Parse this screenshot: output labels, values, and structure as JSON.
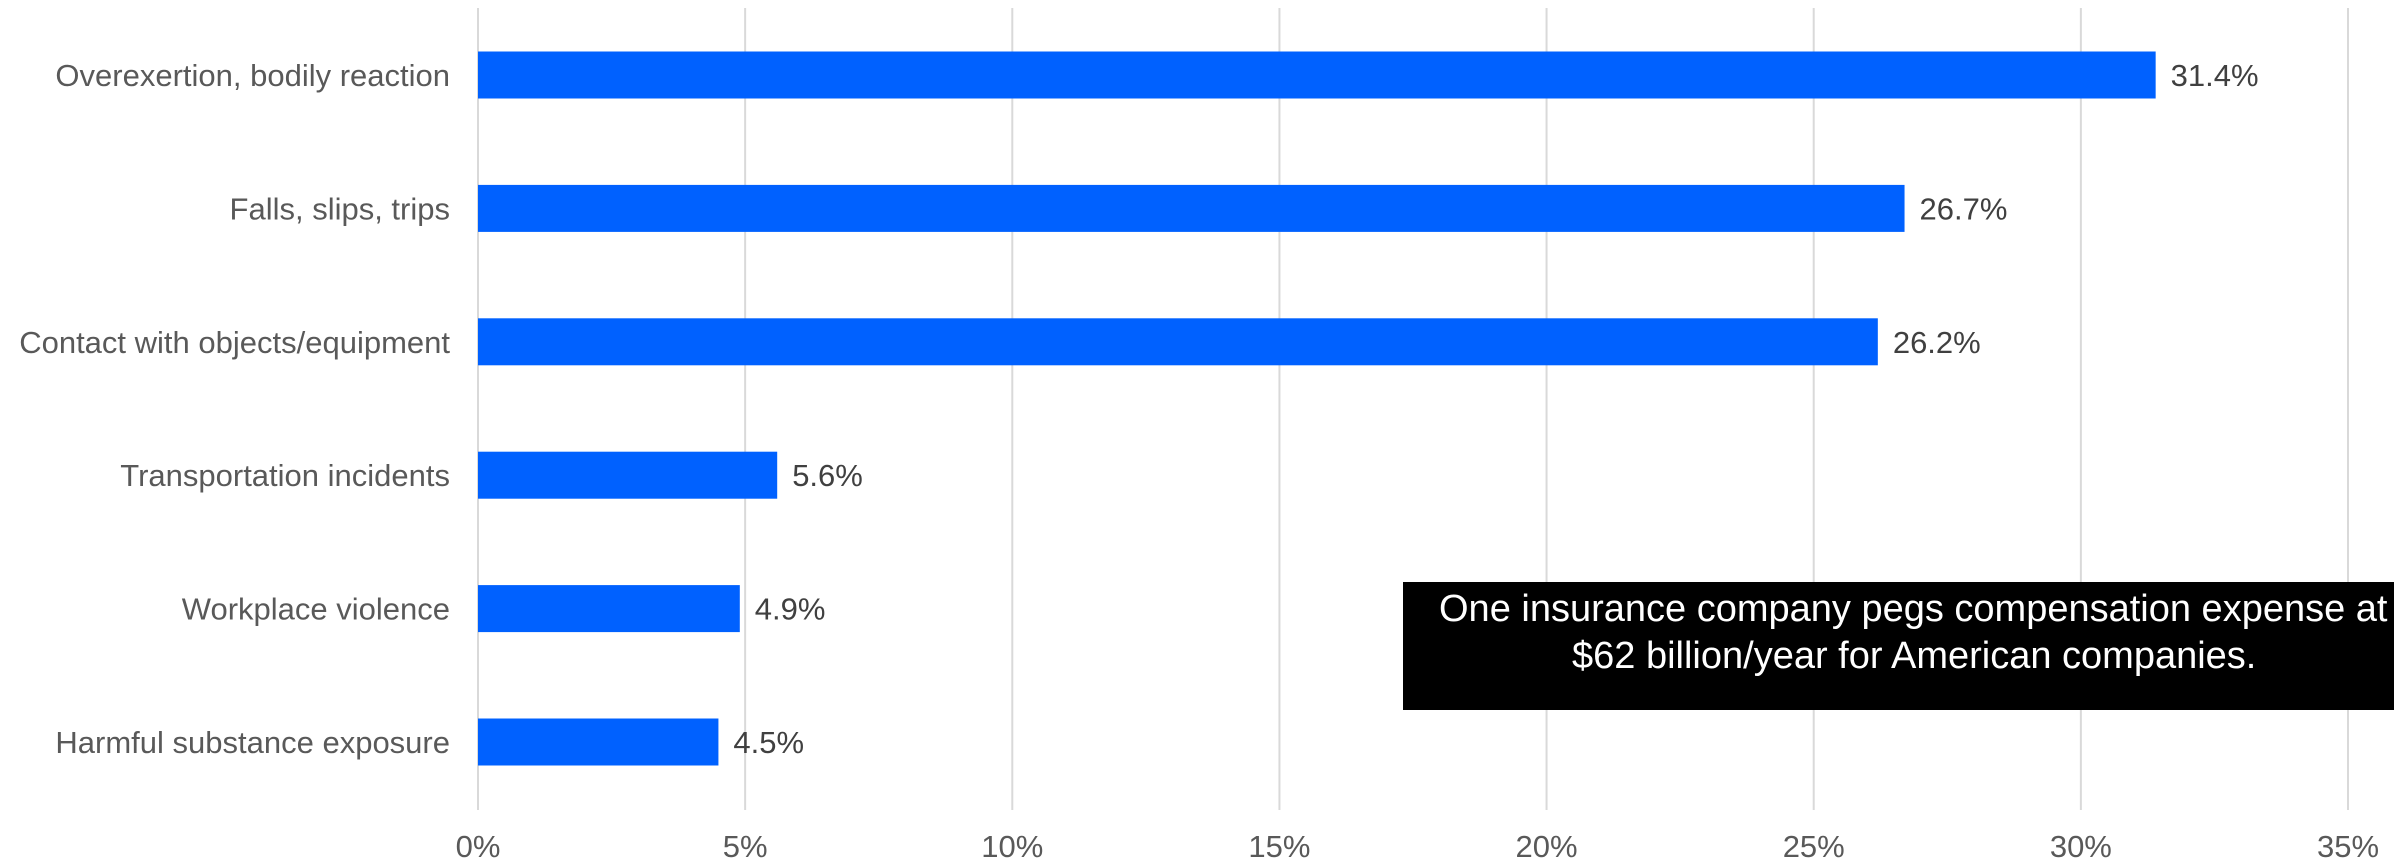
{
  "chart_data": {
    "type": "bar",
    "orientation": "horizontal",
    "categories": [
      "Overexertion, bodily reaction",
      "Falls, slips, trips",
      "Contact with objects/equipment",
      "Transportation incidents",
      "Workplace violence",
      "Harmful substance exposure"
    ],
    "values": [
      31.4,
      26.7,
      26.2,
      5.6,
      4.9,
      4.5
    ],
    "data_labels": [
      "31.4%",
      "26.7%",
      "26.2%",
      "5.6%",
      "4.9%",
      "4.5%"
    ],
    "xlim": [
      0,
      35
    ],
    "x_ticks": [
      0,
      5,
      10,
      15,
      20,
      25,
      30,
      35
    ],
    "x_tick_labels": [
      "0%",
      "5%",
      "10%",
      "15%",
      "20%",
      "25%",
      "30%",
      "35%"
    ],
    "grid": "vertical",
    "legend": "none",
    "bar_color": "#0061FF",
    "grid_color": "#D9D9D9",
    "title": "",
    "xlabel": "",
    "ylabel": ""
  },
  "annotation": {
    "line1": "One insurance company pegs compensation expense at",
    "line2": "$62 billion/year for American companies."
  }
}
